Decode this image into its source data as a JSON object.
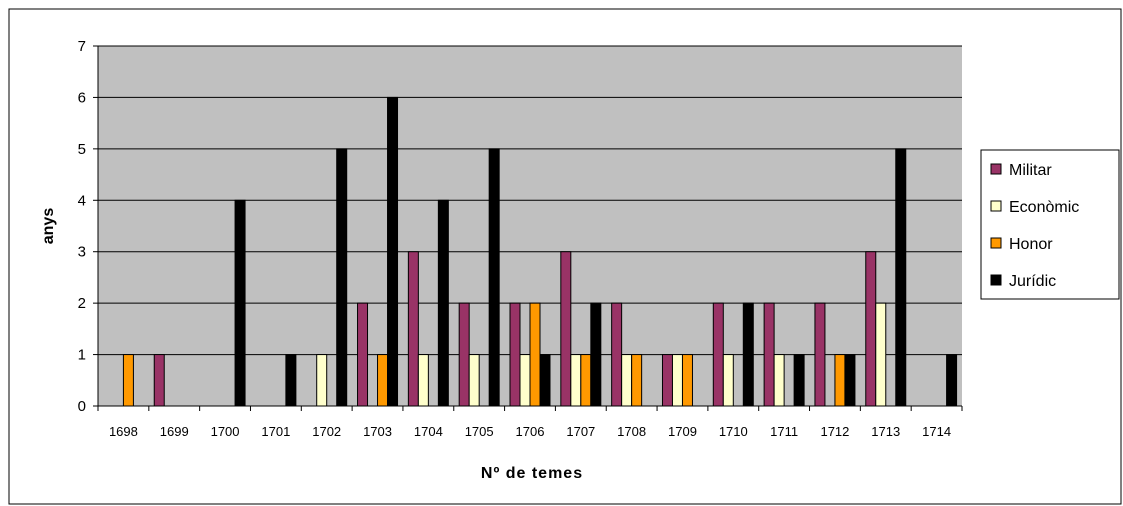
{
  "chart_data": {
    "type": "bar",
    "title": "",
    "xlabel": "Nº de temes",
    "ylabel": "anys",
    "ylim": [
      0,
      7
    ],
    "yticks": [
      0,
      1,
      2,
      3,
      4,
      5,
      6,
      7
    ],
    "grid": true,
    "legend_position": "right",
    "categories": [
      "1698",
      "1699",
      "1700",
      "1701",
      "1702",
      "1703",
      "1704",
      "1705",
      "1706",
      "1707",
      "1708",
      "1709",
      "1710",
      "1711",
      "1712",
      "1713",
      "1714"
    ],
    "series": [
      {
        "name": "Militar",
        "color": "#993366",
        "values": [
          0,
          1,
          0,
          0,
          0,
          2,
          3,
          2,
          2,
          3,
          2,
          1,
          2,
          2,
          2,
          3,
          0
        ]
      },
      {
        "name": "Econòmic",
        "color": "#FFFFCC",
        "values": [
          0,
          0,
          0,
          0,
          1,
          0,
          1,
          1,
          1,
          1,
          1,
          1,
          1,
          1,
          0,
          2,
          0
        ]
      },
      {
        "name": "Honor",
        "color": "#FF9900",
        "values": [
          1,
          0,
          0,
          0,
          0,
          1,
          0,
          0,
          2,
          1,
          1,
          1,
          0,
          0,
          1,
          0,
          0
        ]
      },
      {
        "name": "Jurídic",
        "color": "#000000",
        "values": [
          0,
          0,
          4,
          1,
          5,
          6,
          4,
          5,
          1,
          2,
          0,
          0,
          2,
          1,
          1,
          5,
          1
        ]
      }
    ],
    "plot_background": "#C0C0C0"
  }
}
